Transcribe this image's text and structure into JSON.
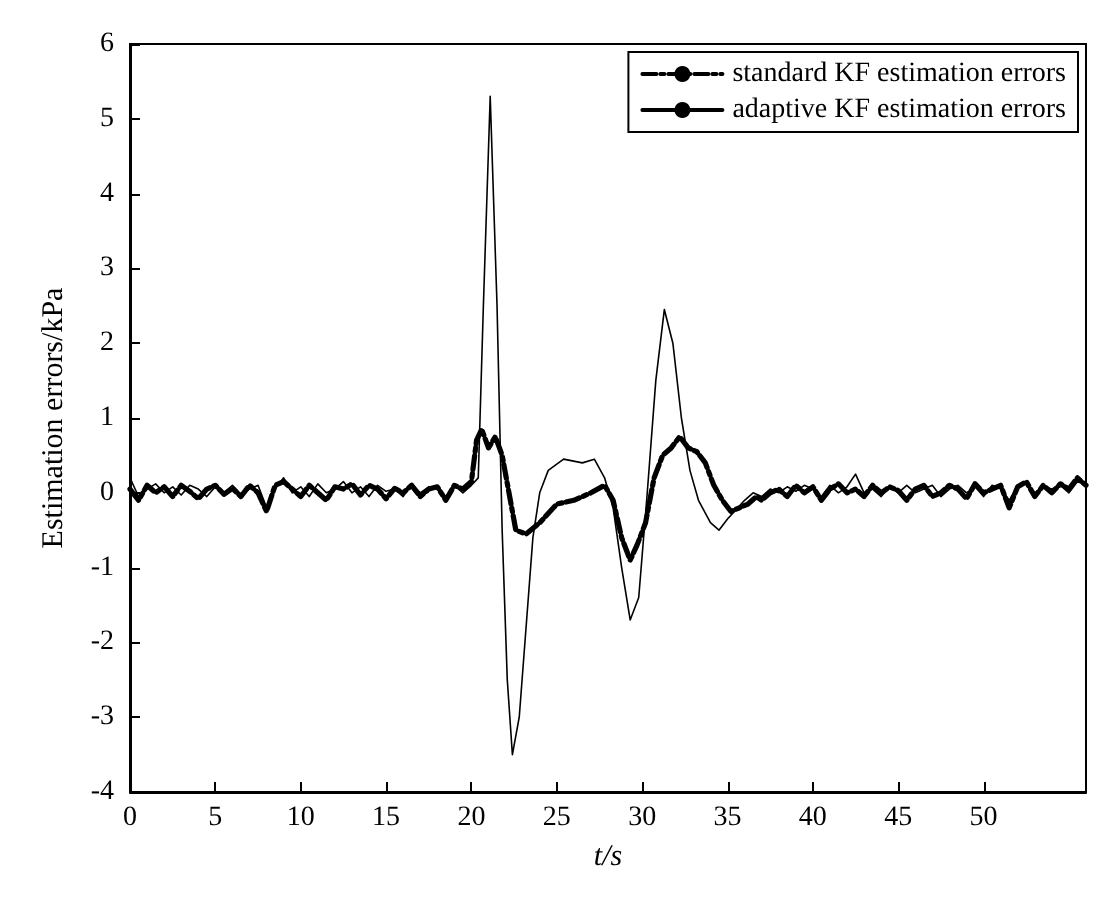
{
  "chart_data": {
    "type": "line",
    "xlabel": "t/s",
    "ylabel": "Estimation errors/kPa",
    "xlim": [
      0,
      56
    ],
    "xticks": [
      0,
      5,
      10,
      15,
      20,
      25,
      30,
      35,
      40,
      45,
      50
    ],
    "ylim": [
      -4,
      6
    ],
    "yticks": [
      -4,
      -3,
      -2,
      -1,
      0,
      1,
      2,
      3,
      4,
      5,
      6
    ],
    "grid": false,
    "legend": "top right",
    "marker": "none",
    "series": [
      {
        "name": "standard KF estimation errors",
        "color": "#000000",
        "line_style": "dashed",
        "x": [
          0,
          0.5,
          1,
          1.5,
          2,
          2.5,
          3,
          3.5,
          4,
          4.5,
          5,
          5.5,
          6,
          6.5,
          7,
          7.5,
          8,
          8.5,
          9,
          9.5,
          10,
          10.5,
          11,
          11.5,
          12,
          12.5,
          13,
          13.5,
          14,
          14.5,
          15,
          15.5,
          16,
          16.5,
          17,
          17.5,
          18,
          18.5,
          19,
          19.5,
          20,
          20.3,
          20.6,
          21.0,
          21.4,
          21.8,
          22.2,
          22.6,
          23.2,
          24,
          25,
          26,
          27,
          27.8,
          28.3,
          28.8,
          29.3,
          29.7,
          30.2,
          30.7,
          31.2,
          31.7,
          32.2,
          32.7,
          33.2,
          33.7,
          34.2,
          34.7,
          35.2,
          35.7,
          36.2,
          36.7,
          37,
          37.5,
          38,
          38.5,
          39,
          39.5,
          40,
          40.5,
          41,
          41.5,
          42,
          42.5,
          43,
          43.5,
          44,
          44.5,
          45,
          45.5,
          46,
          46.5,
          47,
          47.5,
          48,
          48.5,
          49,
          49.5,
          50,
          50.5,
          51,
          51.5,
          52,
          52.5,
          53,
          53.5,
          54,
          54.5,
          55,
          55.5,
          56
        ],
        "values": [
          0.05,
          -0.1,
          0.1,
          0.0,
          0.08,
          -0.05,
          0.1,
          0.02,
          -0.08,
          0.05,
          0.1,
          -0.02,
          0.06,
          -0.05,
          0.1,
          0.0,
          -0.25,
          0.1,
          0.15,
          0.05,
          -0.05,
          0.1,
          0.0,
          -0.1,
          0.08,
          0.05,
          0.12,
          -0.03,
          0.1,
          0.05,
          -0.08,
          0.06,
          0.0,
          0.1,
          -0.05,
          0.05,
          0.08,
          -0.1,
          0.1,
          0.05,
          0.15,
          0.7,
          0.85,
          0.6,
          0.75,
          0.5,
          0.0,
          -0.5,
          -0.55,
          -0.4,
          -0.15,
          -0.1,
          0.0,
          0.1,
          -0.1,
          -0.6,
          -0.9,
          -0.7,
          -0.4,
          0.2,
          0.5,
          0.6,
          0.75,
          0.6,
          0.55,
          0.4,
          0.1,
          -0.1,
          -0.25,
          -0.2,
          -0.15,
          -0.05,
          -0.1,
          0.0,
          0.05,
          -0.05,
          0.1,
          0.0,
          0.08,
          -0.1,
          0.05,
          0.12,
          0.0,
          0.05,
          -0.05,
          0.1,
          0.0,
          0.08,
          0.03,
          -0.1,
          0.05,
          0.1,
          -0.05,
          0.0,
          0.1,
          0.05,
          -0.08,
          0.12,
          0.0,
          0.05,
          0.1,
          -0.2,
          0.08,
          0.15,
          -0.05,
          0.1,
          0.0,
          0.12,
          0.05,
          0.2,
          0.1
        ]
      },
      {
        "name": "adaptive KF estimation errors",
        "color": "#000000",
        "line_style": "solid",
        "x": [
          0,
          0.5,
          1,
          1.5,
          2,
          2.5,
          3,
          3.5,
          4,
          4.5,
          5,
          5.5,
          6,
          6.5,
          7,
          7.5,
          8,
          8.5,
          9,
          9.5,
          10,
          10.5,
          11,
          11.5,
          12,
          12.5,
          13,
          13.5,
          14,
          14.5,
          15,
          15.5,
          16,
          16.5,
          17,
          17.5,
          18,
          18.5,
          19,
          19.5,
          20,
          20.4,
          20.7,
          21.1,
          21.5,
          21.8,
          22.1,
          22.4,
          22.8,
          23.2,
          23.6,
          24,
          24.5,
          25.4,
          26.5,
          27.2,
          27.8,
          28.3,
          28.8,
          29.3,
          29.8,
          30.3,
          30.8,
          31.3,
          31.8,
          32.3,
          32.8,
          33.3,
          34,
          34.5,
          35,
          36,
          36.5,
          37,
          37.5,
          38,
          38.5,
          39,
          39.5,
          40,
          40.5,
          41,
          41.5,
          42,
          42.5,
          43,
          43.5,
          44,
          44.5,
          45,
          45.5,
          46,
          46.5,
          47,
          47.5,
          48,
          48.5,
          49,
          49.5,
          50,
          50.5,
          51,
          51.5,
          52,
          52.5,
          53,
          53.5,
          54,
          54.5,
          55,
          55.5,
          56
        ],
        "values": [
          0.2,
          -0.05,
          0.05,
          0.12,
          0.0,
          0.08,
          -0.03,
          0.1,
          0.05,
          -0.05,
          0.08,
          0.0,
          0.1,
          -0.02,
          0.05,
          0.1,
          -0.2,
          0.05,
          0.2,
          0.0,
          0.08,
          -0.05,
          0.12,
          0.0,
          0.05,
          0.15,
          0.0,
          0.08,
          -0.05,
          0.1,
          0.02,
          0.05,
          -0.05,
          0.12,
          0.0,
          0.08,
          0.05,
          -0.05,
          0.1,
          0.0,
          0.1,
          0.2,
          2.5,
          5.3,
          2.5,
          -0.5,
          -2.5,
          -3.5,
          -3.0,
          -1.8,
          -0.6,
          0,
          0.3,
          0.45,
          0.4,
          0.45,
          0.2,
          -0.2,
          -1.0,
          -1.7,
          -1.4,
          0,
          1.5,
          2.45,
          2.0,
          1.0,
          0.3,
          -0.1,
          -0.4,
          -0.5,
          -0.35,
          -0.1,
          0.0,
          -0.05,
          0.05,
          0.0,
          0.08,
          0.02,
          0.1,
          0.05,
          -0.05,
          0.1,
          0.0,
          0.08,
          0.25,
          0.0,
          0.05,
          -0.05,
          0.08,
          0.0,
          0.1,
          0.0,
          0.05,
          0.1,
          -0.05,
          0.05,
          0.1,
          0.0,
          0.08,
          -0.05,
          0.1,
          0.05,
          -0.1,
          0.1,
          0.12,
          0.0,
          0.08,
          0.05,
          0.1,
          0.0,
          0.15,
          0.1
        ]
      }
    ]
  }
}
